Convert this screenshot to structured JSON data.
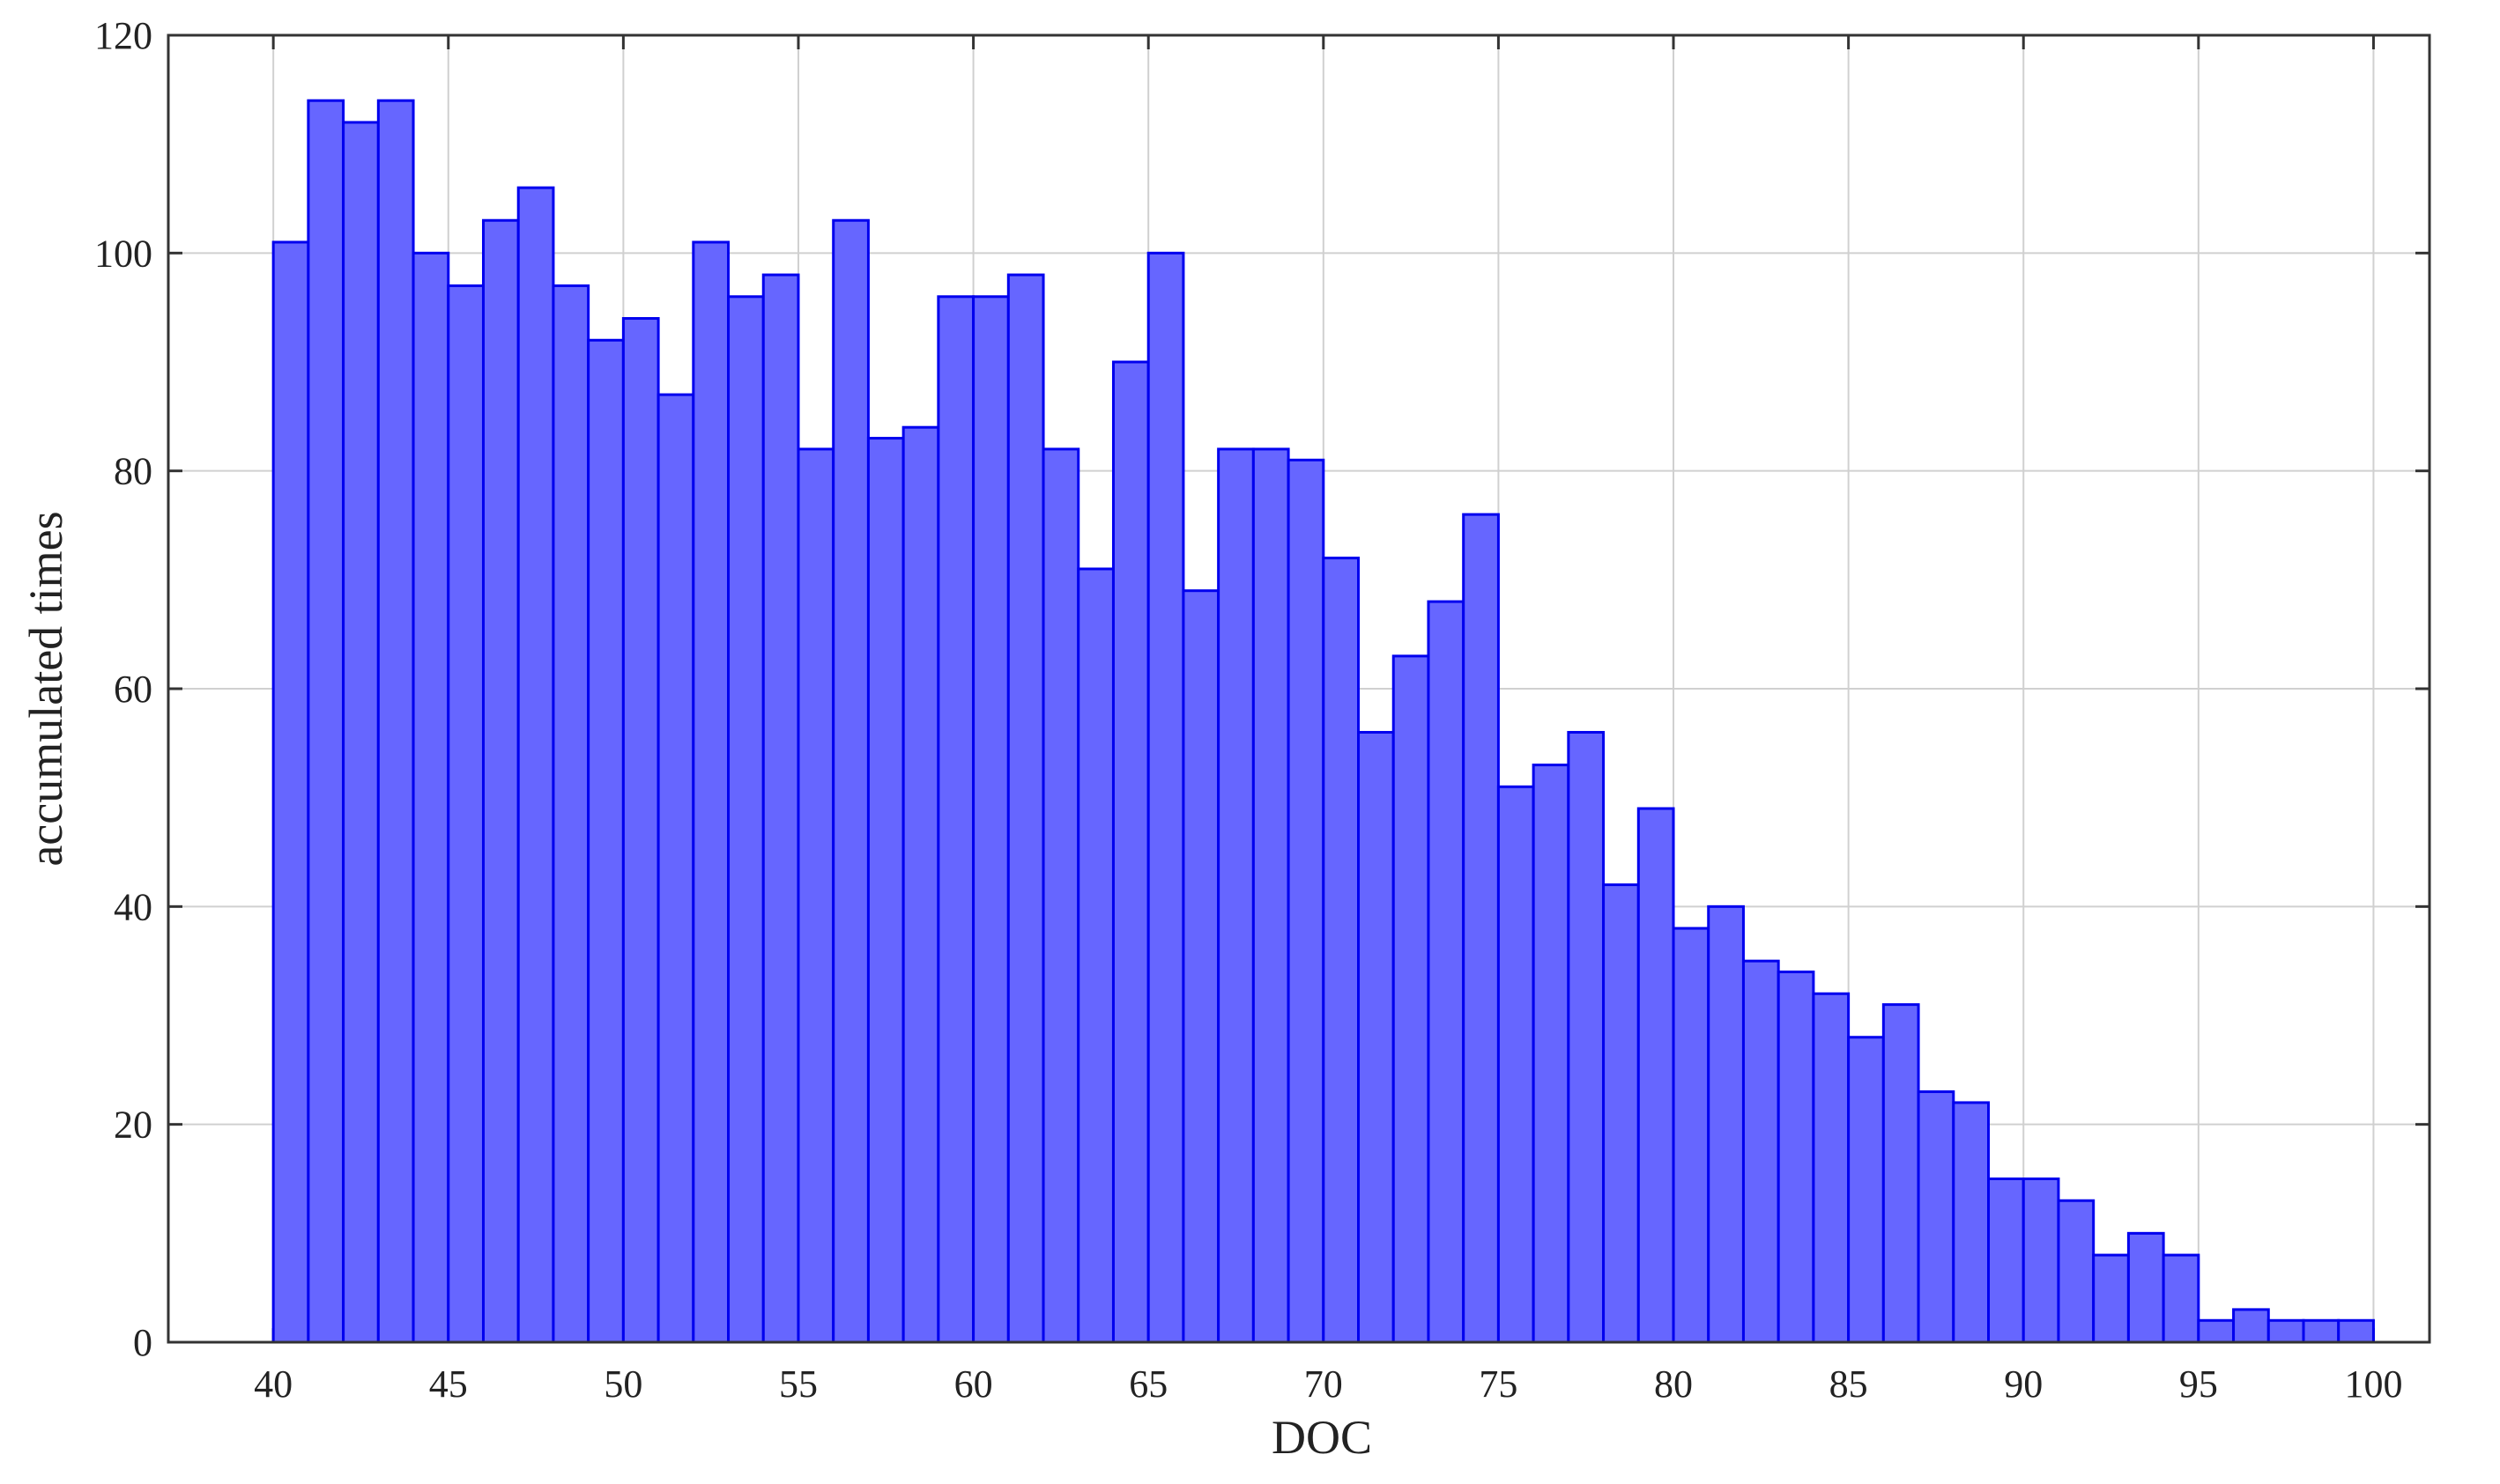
{
  "chart_data": {
    "type": "histogram",
    "xlabel": "DOC",
    "ylabel": "accumulated times",
    "bins": [
      40,
      41,
      42,
      43,
      44,
      45,
      46,
      47,
      48,
      49,
      50,
      51,
      52,
      53,
      54,
      55,
      56,
      57,
      58,
      59,
      60,
      61,
      62,
      63,
      64,
      65,
      66,
      67,
      68,
      69,
      70,
      71,
      72,
      73,
      74,
      75,
      76,
      77,
      78,
      79,
      80,
      81,
      82,
      83,
      84,
      85,
      86,
      87,
      88,
      89,
      90,
      91,
      92,
      93,
      94,
      95,
      96,
      97,
      98,
      99,
      100
    ],
    "counts": [
      101,
      114,
      112,
      114,
      100,
      97,
      103,
      106,
      97,
      92,
      94,
      87,
      101,
      96,
      98,
      82,
      103,
      83,
      84,
      96,
      96,
      98,
      82,
      71,
      90,
      100,
      69,
      82,
      82,
      81,
      72,
      56,
      63,
      68,
      76,
      51,
      53,
      56,
      42,
      49,
      38,
      40,
      35,
      34,
      32,
      28,
      31,
      23,
      22,
      15,
      15,
      13,
      8,
      10,
      8,
      2,
      3,
      2,
      2,
      2
    ],
    "color": "#6666ff",
    "edgecolor": "#0000ee",
    "xlim": [
      37,
      101.6
    ],
    "ylim": [
      0,
      120
    ],
    "xticks": [
      40,
      45,
      50,
      55,
      60,
      65,
      70,
      75,
      80,
      85,
      90,
      95,
      100
    ],
    "yticks": [
      0,
      20,
      40,
      60,
      80,
      100,
      120
    ],
    "grid": true
  }
}
